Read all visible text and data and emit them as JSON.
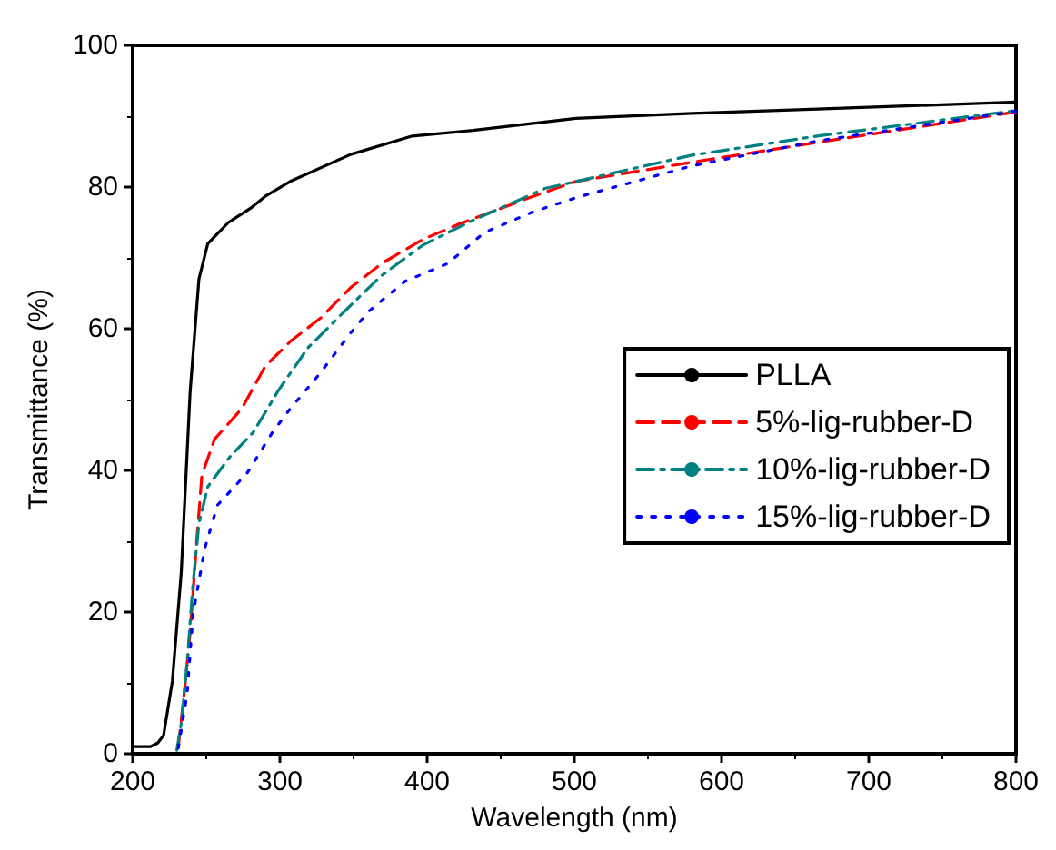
{
  "chart_data": {
    "type": "line",
    "xlabel": "Wavelength (nm)",
    "ylabel": "Transmittance (%)",
    "xlim": [
      200,
      800
    ],
    "xticks": [
      200,
      300,
      400,
      500,
      600,
      700,
      800
    ],
    "ylim": [
      0,
      100
    ],
    "yticks": [
      0,
      20,
      40,
      60,
      80,
      100
    ],
    "grid": false,
    "legend": "right",
    "marker": "none",
    "series": [
      {
        "name": "PLLA",
        "color": "#000000",
        "line_style": "solid",
        "x": [
          200,
          212,
          217,
          221,
          227,
          233,
          239,
          245,
          251,
          265,
          280,
          290,
          307,
          348,
          390,
          431,
          501,
          580,
          665,
          800
        ],
        "values": [
          1,
          1,
          1.5,
          2.6,
          10.3,
          25.6,
          51,
          67,
          72,
          75,
          77,
          78.7,
          80.8,
          84.6,
          87.2,
          88,
          89.7,
          90.4,
          91,
          92
        ]
      },
      {
        "name": "5%-lig-rubber-D",
        "color": "#ff0000",
        "line_style": "dashed",
        "x": [
          231,
          235,
          239,
          243.5,
          247,
          255.6,
          274,
          290,
          307,
          327.6,
          348,
          369,
          397,
          422,
          472,
          501,
          580,
          665,
          800
        ],
        "values": [
          1,
          8.5,
          17,
          30,
          39.3,
          44.4,
          48.7,
          54.7,
          58.2,
          61.5,
          65.8,
          69.2,
          72.6,
          74.8,
          78.7,
          80.8,
          83.5,
          86.3,
          90.6
        ]
      },
      {
        "name": "10%-lig-rubber-D",
        "color": "#008080",
        "line_style": "dashdot",
        "x": [
          230,
          233,
          237,
          241,
          245,
          251,
          266,
          282,
          299,
          319,
          348,
          369,
          397,
          430,
          480,
          580,
          665,
          800
        ],
        "values": [
          0.5,
          4.3,
          12.8,
          24,
          32.5,
          37.7,
          41.9,
          45.4,
          51.3,
          57.3,
          63.3,
          67.5,
          71.8,
          75.2,
          79.8,
          84.5,
          87.2,
          90.8
        ]
      },
      {
        "name": "15%-lig-rubber-D",
        "color": "#0000ff",
        "line_style": "dotted",
        "x": [
          231,
          237,
          241,
          249,
          257.6,
          278,
          295,
          307,
          327.6,
          348,
          360,
          385,
          414,
          439,
          472,
          501,
          580,
          665,
          800
        ],
        "values": [
          0.8,
          8.5,
          19.7,
          29,
          35.1,
          39.7,
          45.4,
          48.7,
          53.8,
          59.4,
          62.4,
          66.7,
          69.2,
          73.6,
          76.5,
          78.5,
          83,
          86.5,
          90.7
        ]
      }
    ]
  }
}
